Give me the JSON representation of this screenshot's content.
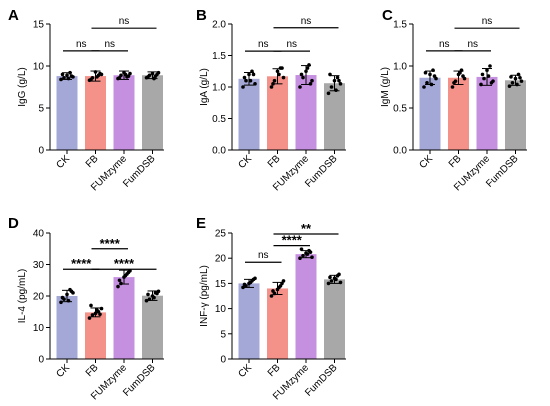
{
  "chart_data": [
    {
      "panel": "A",
      "type": "bar",
      "ylabel": "IgG (g/L)",
      "categories": [
        "CK",
        "FB",
        "FUMzyme",
        "FumDSB"
      ],
      "ylim": [
        0,
        15
      ],
      "yticks": [
        0,
        5,
        10,
        15
      ],
      "values": [
        8.8,
        8.8,
        8.9,
        8.9
      ],
      "errors": [
        0.4,
        0.6,
        0.5,
        0.4
      ],
      "points": [
        [
          8.4,
          8.6,
          8.9,
          9.2,
          8.7,
          9.0,
          8.5,
          8.8
        ],
        [
          8.3,
          8.6,
          9.3,
          8.9,
          9.0,
          8.4,
          8.7,
          9.1
        ],
        [
          8.5,
          8.9,
          9.2,
          8.7,
          9.1,
          8.6,
          9.0,
          8.8
        ],
        [
          8.6,
          8.9,
          9.1,
          8.8,
          9.2,
          8.7,
          8.5,
          9.0
        ]
      ],
      "significance": [
        {
          "from": 0,
          "to": 1,
          "label": "ns",
          "y": 11.8
        },
        {
          "from": 1,
          "to": 2,
          "label": "ns",
          "y": 11.8
        },
        {
          "from": 1,
          "to": 3,
          "label": "ns",
          "y": 14.5
        }
      ]
    },
    {
      "panel": "B",
      "type": "bar",
      "ylabel": "IgA (g/L)",
      "categories": [
        "CK",
        "FB",
        "FUMzyme",
        "FumDSB"
      ],
      "ylim": [
        0,
        2.0
      ],
      "yticks": [
        0.0,
        0.5,
        1.0,
        1.5,
        2.0
      ],
      "values": [
        1.13,
        1.17,
        1.19,
        1.06
      ],
      "errors": [
        0.1,
        0.12,
        0.15,
        0.12
      ],
      "points": [
        [
          1.0,
          1.1,
          1.2,
          1.25,
          1.05,
          1.15,
          1.1,
          1.2
        ],
        [
          1.0,
          1.1,
          1.25,
          1.3,
          1.15,
          1.05,
          1.2,
          1.3
        ],
        [
          1.0,
          1.15,
          1.25,
          1.35,
          1.1,
          1.2,
          1.3,
          1.05
        ],
        [
          0.9,
          1.0,
          1.1,
          1.15,
          1.05,
          1.2,
          0.95,
          1.1
        ]
      ],
      "significance": [
        {
          "from": 0,
          "to": 1,
          "label": "ns",
          "y": 1.57
        },
        {
          "from": 1,
          "to": 2,
          "label": "ns",
          "y": 1.57
        },
        {
          "from": 1,
          "to": 3,
          "label": "ns",
          "y": 1.94
        }
      ]
    },
    {
      "panel": "C",
      "type": "bar",
      "ylabel": "IgM (g/L)",
      "categories": [
        "CK",
        "FB",
        "FUMzyme",
        "FumDSB"
      ],
      "ylim": [
        0,
        1.5
      ],
      "yticks": [
        0.0,
        0.5,
        1.0,
        1.5
      ],
      "values": [
        0.86,
        0.86,
        0.87,
        0.83
      ],
      "errors": [
        0.08,
        0.08,
        0.1,
        0.06
      ],
      "points": [
        [
          0.75,
          0.8,
          0.9,
          0.95,
          0.85,
          0.92,
          0.78,
          0.88
        ],
        [
          0.75,
          0.82,
          0.9,
          0.95,
          0.85,
          0.8,
          0.92,
          0.88
        ],
        [
          0.78,
          0.85,
          0.95,
          1.0,
          0.82,
          0.9,
          0.88,
          0.8
        ],
        [
          0.76,
          0.8,
          0.85,
          0.9,
          0.82,
          0.87,
          0.78,
          0.86
        ]
      ],
      "significance": [
        {
          "from": 0,
          "to": 1,
          "label": "ns",
          "y": 1.18
        },
        {
          "from": 1,
          "to": 2,
          "label": "ns",
          "y": 1.18
        },
        {
          "from": 1,
          "to": 3,
          "label": "ns",
          "y": 1.45
        }
      ]
    },
    {
      "panel": "D",
      "type": "bar",
      "ylabel": "IL-4 (pg/mL)",
      "categories": [
        "CK",
        "FB",
        "FUMzyme",
        "FumDSB"
      ],
      "ylim": [
        0,
        40
      ],
      "yticks": [
        0,
        10,
        20,
        30,
        40
      ],
      "values": [
        20.0,
        14.8,
        26.0,
        20.1
      ],
      "errors": [
        1.8,
        1.4,
        2.2,
        1.5
      ],
      "points": [
        [
          18,
          19,
          20.5,
          22,
          21,
          19.5,
          18.5,
          21.5
        ],
        [
          13,
          14,
          14.5,
          15,
          16,
          17,
          15.5,
          14.2
        ],
        [
          23,
          24,
          26,
          27,
          28,
          25,
          26.5,
          27.5
        ],
        [
          18.5,
          19,
          20,
          21,
          21.5,
          20.5,
          19.5,
          20.8
        ]
      ],
      "significance": [
        {
          "from": 0,
          "to": 1,
          "label": "****",
          "y": 28.5
        },
        {
          "from": 1,
          "to": 2,
          "label": "****",
          "y": 35.0
        },
        {
          "from": 1,
          "to": 3,
          "label": "****",
          "y": 28.5
        }
      ]
    },
    {
      "panel": "E",
      "type": "bar",
      "ylabel": "INF-γ (pg/mL)",
      "categories": [
        "CK",
        "FB",
        "FUMzyme",
        "FumDSB"
      ],
      "ylim": [
        0,
        25
      ],
      "yticks": [
        0,
        5,
        10,
        15,
        20,
        25
      ],
      "values": [
        15.0,
        14.0,
        20.8,
        15.8
      ],
      "errors": [
        0.8,
        1.2,
        0.7,
        0.8
      ],
      "points": [
        [
          14.2,
          14.5,
          15,
          15.5,
          16,
          14.8,
          15.2,
          15.8
        ],
        [
          12.5,
          13,
          13.8,
          14.5,
          15.5,
          13.5,
          14.2,
          15
        ],
        [
          20,
          20.5,
          21,
          21.5,
          20.2,
          21.8,
          20.8,
          21.2
        ],
        [
          15,
          15.5,
          16,
          16.5,
          15.2,
          16.2,
          15.8,
          16.8
        ]
      ],
      "significance": [
        {
          "from": 0,
          "to": 1,
          "label": "ns",
          "y": 19.2
        },
        {
          "from": 1,
          "to": 2,
          "label": "****",
          "y": 22.5
        },
        {
          "from": 1,
          "to": 3,
          "label": "**",
          "y": 24.8
        }
      ]
    }
  ],
  "colors": {
    "bars": [
      "#a4a8d7",
      "#f4928a",
      "#c690e0",
      "#a8a8a8"
    ],
    "dots": "#000000",
    "axis": "#000000"
  }
}
